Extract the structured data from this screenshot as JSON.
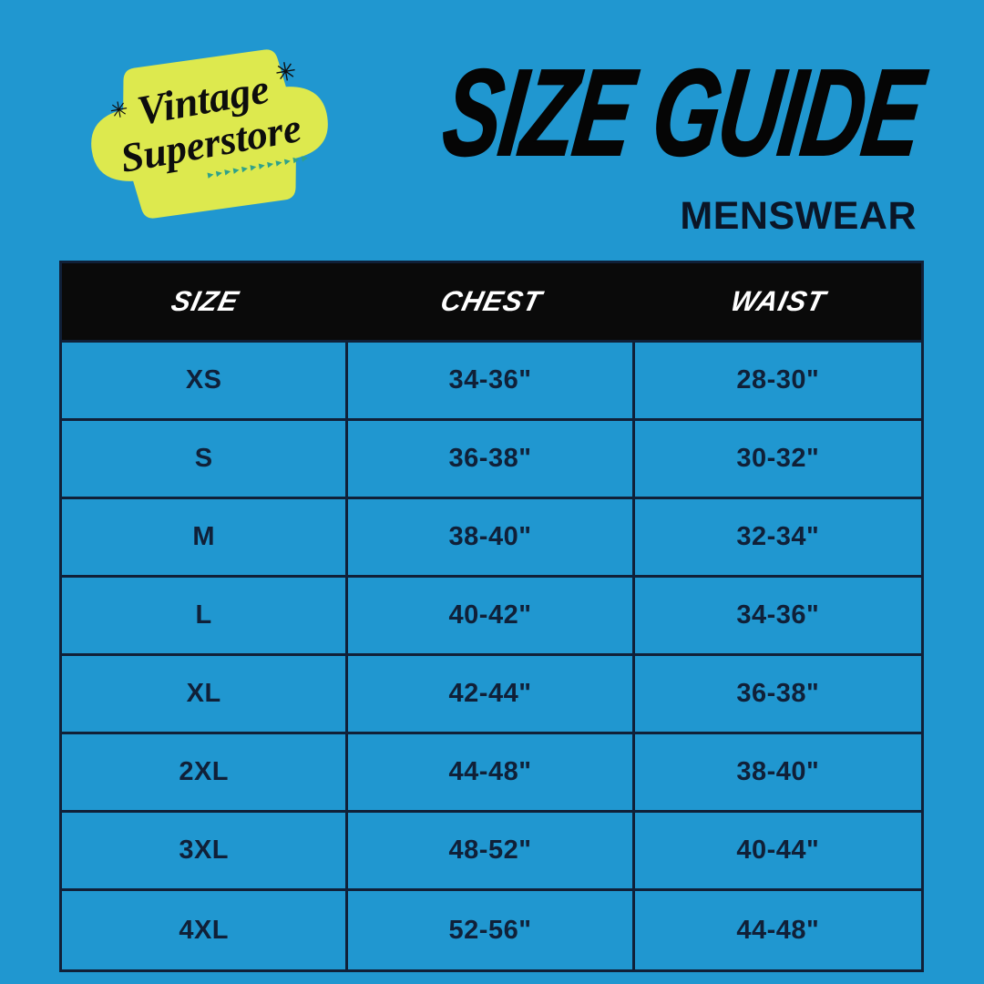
{
  "colors": {
    "bg": "#2097d0",
    "navy": "#102038",
    "header-bg": "#0a0a0a",
    "header-text": "#ffffff",
    "badge": "#dde94e",
    "teal": "#2fa189"
  },
  "logo": {
    "line1": "Vintage",
    "line2": "Superstore",
    "star_left": "✳",
    "star_right": "✳",
    "arrows": "▸▸▸▸▸▸▸▸▸▸▸▸"
  },
  "header": {
    "title": "SIZE GUIDE",
    "subtitle": "MENSWEAR"
  },
  "size_table": {
    "columns": [
      "SIZE",
      "CHEST",
      "WAIST"
    ],
    "rows": [
      [
        "XS",
        "34-36\"",
        "28-30\""
      ],
      [
        "S",
        "36-38\"",
        "30-32\""
      ],
      [
        "M",
        "38-40\"",
        "32-34\""
      ],
      [
        "L",
        "40-42\"",
        "34-36\""
      ],
      [
        "XL",
        "42-44\"",
        "36-38\""
      ],
      [
        "2XL",
        "44-48\"",
        "38-40\""
      ],
      [
        "3XL",
        "48-52\"",
        "40-44\""
      ],
      [
        "4XL",
        "52-56\"",
        "44-48\""
      ]
    ]
  }
}
